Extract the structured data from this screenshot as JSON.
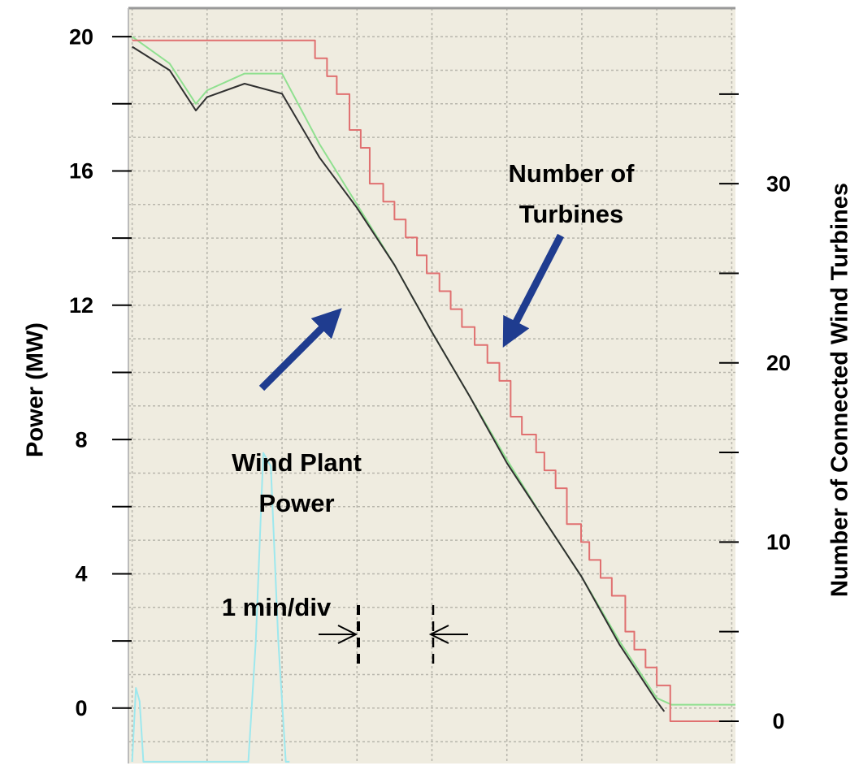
{
  "chart_data": {
    "type": "line",
    "ylabel": "Power (MW)",
    "y2label": "Number of Connected Wind Turbines",
    "annotations": [
      {
        "lines": [
          "Wind Plant",
          "Power"
        ]
      },
      {
        "lines": [
          "Number of",
          "Turbines"
        ]
      },
      {
        "lines": [
          "1 min/div"
        ]
      }
    ],
    "xlim": [
      -0.05,
      8.05
    ],
    "xgrid": [
      0,
      1,
      2,
      3,
      4,
      5,
      6,
      7,
      8
    ],
    "ylim": [
      -1.65,
      20.85
    ],
    "yticks": [
      0,
      4,
      8,
      12,
      16,
      20
    ],
    "yminor_ticks": [
      2,
      6,
      10,
      14,
      18
    ],
    "ygrid": [
      -1,
      0,
      1,
      2,
      3,
      4,
      5,
      6,
      7,
      8,
      9,
      10,
      11,
      12,
      13,
      14,
      15,
      16,
      17,
      18,
      19,
      20
    ],
    "y2lim": [
      -2.36,
      39.8
    ],
    "y2ticks": [
      0,
      10,
      20,
      30
    ],
    "y2minor_ticks": [
      5,
      15,
      25,
      35
    ],
    "background": "#efece0",
    "series": [
      {
        "color": "#9de8ee",
        "x": [
          0,
          0.05,
          0.1,
          0.15,
          1.55,
          1.65,
          1.75,
          1.85,
          1.95,
          2.05,
          2.1
        ],
        "values": [
          -1.6,
          0.6,
          0.2,
          -1.6,
          -1.6,
          2,
          7.6,
          7.2,
          2,
          -1.6,
          -1.6
        ]
      },
      {
        "color": "#90e090",
        "x": [
          0,
          0.5,
          0.85,
          1.0,
          1.5,
          2.0,
          2.5,
          3.0,
          3.5,
          4.0,
          4.5,
          5.0,
          5.5,
          6.0,
          6.5,
          7.0,
          7.2,
          8.05
        ],
        "values": [
          20.0,
          19.2,
          18.0,
          18.4,
          18.9,
          18.9,
          16.8,
          15.0,
          13.2,
          11.2,
          9.3,
          7.4,
          5.6,
          3.9,
          2.0,
          0.3,
          0.1,
          0.1
        ]
      },
      {
        "color": "#303030",
        "x": [
          0,
          0.5,
          0.85,
          1.0,
          1.5,
          2.0,
          2.5,
          3.0,
          3.5,
          4.0,
          4.5,
          5.0,
          5.5,
          6.0,
          6.5,
          7.0,
          7.1
        ],
        "values": [
          19.7,
          19.0,
          17.8,
          18.2,
          18.6,
          18.3,
          16.4,
          14.9,
          13.2,
          11.2,
          9.3,
          7.3,
          5.6,
          3.9,
          1.9,
          0.2,
          -0.1
        ]
      },
      {
        "color": "#e07070",
        "axis": "y2",
        "step": true,
        "x": [
          0,
          2.44,
          2.6,
          2.73,
          2.9,
          3.05,
          3.17,
          3.35,
          3.5,
          3.65,
          3.8,
          3.93,
          4.1,
          4.25,
          4.4,
          4.57,
          4.74,
          4.9,
          5.05,
          5.2,
          5.39,
          5.5,
          5.65,
          5.8,
          5.99,
          6.1,
          6.25,
          6.4,
          6.58,
          6.7,
          6.85,
          7.0,
          7.18,
          8.05
        ],
        "values": [
          38,
          37,
          36,
          35,
          33,
          32,
          30,
          29,
          28,
          27,
          26,
          25,
          24,
          23,
          22,
          21,
          20,
          19,
          17,
          16,
          15,
          14,
          13,
          11,
          10,
          9,
          8,
          7,
          5,
          4,
          3,
          2,
          0,
          0
        ]
      }
    ]
  }
}
